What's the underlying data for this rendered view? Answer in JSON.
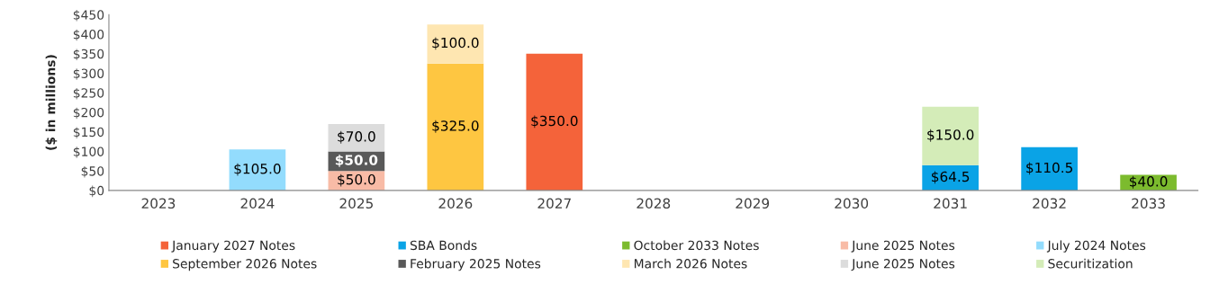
{
  "chart_data": {
    "type": "bar",
    "stacked": true,
    "ylabel": "($ in millions)",
    "categories": [
      "2023",
      "2024",
      "2025",
      "2026",
      "2027",
      "2028",
      "2029",
      "2030",
      "2031",
      "2032",
      "2033"
    ],
    "ylim": [
      0,
      450
    ],
    "yticks": [
      {
        "value": 0,
        "label": "$0"
      },
      {
        "value": 50,
        "label": "$50"
      },
      {
        "value": 100,
        "label": "$100"
      },
      {
        "value": 150,
        "label": "$150"
      },
      {
        "value": 200,
        "label": "$200"
      },
      {
        "value": 250,
        "label": "$250"
      },
      {
        "value": 300,
        "label": "$300"
      },
      {
        "value": 350,
        "label": "$350"
      },
      {
        "value": 400,
        "label": "$400"
      },
      {
        "value": 450,
        "label": "$450"
      }
    ],
    "grid": false,
    "legend": "bottom",
    "series": [
      {
        "name": "January 2027 Notes",
        "color": "#f4633a",
        "values": [
          null,
          null,
          null,
          null,
          350.0,
          null,
          null,
          null,
          null,
          null,
          null
        ],
        "value_labels": [
          null,
          null,
          null,
          null,
          "$350.0",
          null,
          null,
          null,
          null,
          null,
          null
        ]
      },
      {
        "name": "SBA Bonds",
        "color": "#0aa3e6",
        "values": [
          null,
          null,
          null,
          null,
          null,
          null,
          null,
          null,
          64.5,
          110.5,
          null
        ],
        "value_labels": [
          null,
          null,
          null,
          null,
          null,
          null,
          null,
          null,
          "$64.5",
          "$110.5",
          null
        ]
      },
      {
        "name": "October 2033 Notes",
        "color": "#7cbb2e",
        "values": [
          null,
          null,
          null,
          null,
          null,
          null,
          null,
          null,
          null,
          null,
          40.0
        ],
        "value_labels": [
          null,
          null,
          null,
          null,
          null,
          null,
          null,
          null,
          null,
          null,
          "$40.0"
        ]
      },
      {
        "name": "June 2025 Notes",
        "color": "#f8bba6",
        "values": [
          null,
          null,
          50.0,
          null,
          null,
          null,
          null,
          null,
          null,
          null,
          null
        ],
        "value_labels": [
          null,
          null,
          "$50.0",
          null,
          null,
          null,
          null,
          null,
          null,
          null,
          null
        ]
      },
      {
        "name": "July 2024 Notes",
        "color": "#93dcfd",
        "values": [
          null,
          105.0,
          null,
          null,
          null,
          null,
          null,
          null,
          null,
          null,
          null
        ],
        "value_labels": [
          null,
          "$105.0",
          null,
          null,
          null,
          null,
          null,
          null,
          null,
          null,
          null
        ]
      },
      {
        "name": "September 2026 Notes",
        "color": "#fec641",
        "values": [
          null,
          null,
          null,
          325.0,
          null,
          null,
          null,
          null,
          null,
          null,
          null
        ],
        "value_labels": [
          null,
          null,
          null,
          "$325.0",
          null,
          null,
          null,
          null,
          null,
          null,
          null
        ]
      },
      {
        "name": "February 2025 Notes",
        "color": "#595959",
        "values": [
          null,
          null,
          50.0,
          null,
          null,
          null,
          null,
          null,
          null,
          null,
          null
        ],
        "value_labels": [
          null,
          null,
          "$50.0",
          null,
          null,
          null,
          null,
          null,
          null,
          null,
          null
        ]
      },
      {
        "name": "March 2026 Notes",
        "color": "#fee6b1",
        "values": [
          null,
          null,
          null,
          100.0,
          null,
          null,
          null,
          null,
          null,
          null,
          null
        ],
        "value_labels": [
          null,
          null,
          null,
          "$100.0",
          null,
          null,
          null,
          null,
          null,
          null,
          null
        ]
      },
      {
        "name": "June 2025 Notes",
        "color": "#dcdcdc",
        "values": [
          null,
          null,
          70.0,
          null,
          null,
          null,
          null,
          null,
          null,
          null,
          null
        ],
        "value_labels": [
          null,
          null,
          "$70.0",
          null,
          null,
          null,
          null,
          null,
          null,
          null,
          null
        ]
      },
      {
        "name": "Securitization",
        "color": "#d4ecb8",
        "values": [
          null,
          null,
          null,
          null,
          null,
          null,
          null,
          null,
          150.0,
          null,
          null
        ],
        "value_labels": [
          null,
          null,
          null,
          null,
          null,
          null,
          null,
          null,
          "$150.0",
          null,
          null
        ]
      }
    ]
  }
}
